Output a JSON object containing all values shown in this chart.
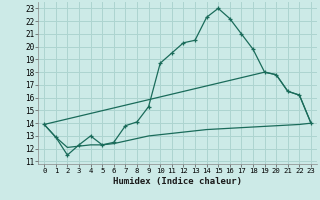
{
  "xlabel": "Humidex (Indice chaleur)",
  "bg_color": "#cceae7",
  "grid_color": "#add4d0",
  "line_color": "#1a6b5a",
  "xlim": [
    -0.5,
    23.5
  ],
  "ylim": [
    10.8,
    23.5
  ],
  "xticks": [
    0,
    1,
    2,
    3,
    4,
    5,
    6,
    7,
    8,
    9,
    10,
    11,
    12,
    13,
    14,
    15,
    16,
    17,
    18,
    19,
    20,
    21,
    22,
    23
  ],
  "yticks": [
    11,
    12,
    13,
    14,
    15,
    16,
    17,
    18,
    19,
    20,
    21,
    22,
    23
  ],
  "line1_x": [
    0,
    1,
    2,
    3,
    4,
    5,
    6,
    7,
    8,
    9,
    10,
    11,
    12,
    13,
    14,
    15,
    16,
    17,
    18,
    19,
    20,
    21,
    22,
    23
  ],
  "line1_y": [
    13.9,
    12.9,
    11.5,
    12.3,
    13.0,
    12.3,
    12.5,
    13.8,
    14.1,
    15.3,
    18.7,
    19.5,
    20.3,
    20.5,
    22.3,
    23.0,
    22.2,
    21.0,
    19.8,
    18.0,
    17.8,
    16.5,
    16.2,
    14.0
  ],
  "line2_x": [
    0,
    19,
    20,
    21,
    22,
    23
  ],
  "line2_y": [
    13.9,
    18.0,
    17.8,
    16.5,
    16.2,
    14.0
  ],
  "line3_x": [
    0,
    1,
    2,
    3,
    4,
    5,
    6,
    7,
    8,
    9,
    10,
    11,
    12,
    13,
    14,
    15,
    16,
    17,
    18,
    19,
    20,
    21,
    22,
    23
  ],
  "line3_y": [
    13.9,
    12.9,
    12.1,
    12.2,
    12.3,
    12.3,
    12.4,
    12.6,
    12.8,
    13.0,
    13.1,
    13.2,
    13.3,
    13.4,
    13.5,
    13.55,
    13.6,
    13.65,
    13.7,
    13.75,
    13.8,
    13.85,
    13.9,
    14.0
  ]
}
